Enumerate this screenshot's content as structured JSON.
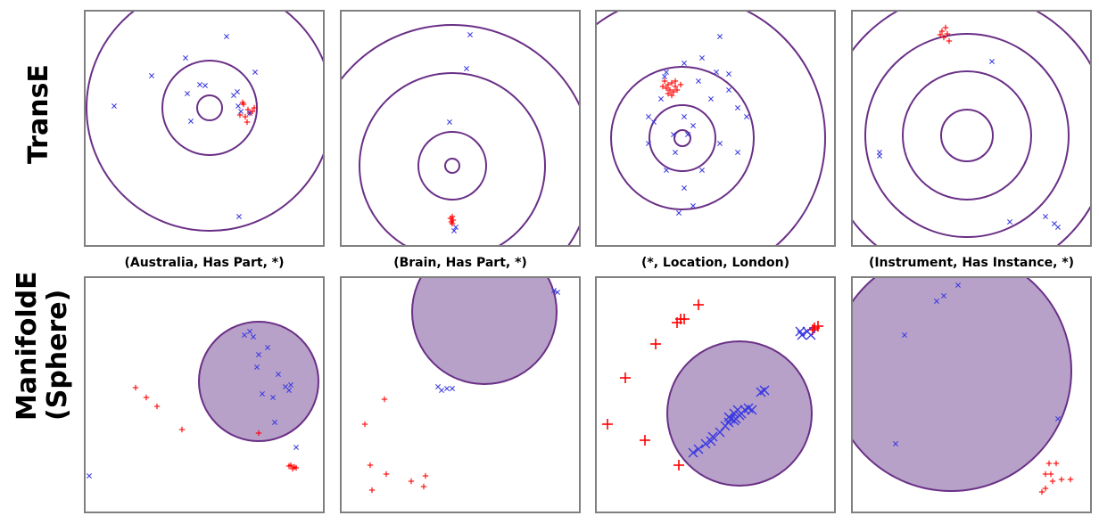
{
  "row_labels": {
    "transe": "TransE",
    "manifolde_line1": "ManifoldE",
    "manifolde_line2": "(Sphere)"
  },
  "column_labels": [
    "(Australia, Has Part, *)",
    "(Brain, Has Part, *)",
    "(*, Location, London)",
    "(Instrument, Has Instance, *)"
  ],
  "colors": {
    "circle": "#6a2f86",
    "sphere_fill": "#b7a1c9",
    "positive": "#ff0000",
    "negative": "#3a3ae0",
    "frame": "#808080"
  },
  "chart_data": [
    {
      "type": "scatter",
      "panel": "transe-australia",
      "xlim": [
        0,
        270
      ],
      "ylim": [
        0,
        266
      ],
      "rings": {
        "center": [
          141,
          110
        ],
        "radii": [
          14,
          53,
          138
        ]
      },
      "positives": [
        [
          178,
          104
        ],
        [
          184,
          112
        ],
        [
          186,
          116
        ],
        [
          181,
          120
        ],
        [
          189,
          114
        ],
        [
          175,
          118
        ],
        [
          191,
          110
        ],
        [
          183,
          126
        ],
        [
          179,
          106
        ]
      ],
      "negatives": [
        [
          160,
          30
        ],
        [
          34,
          108
        ],
        [
          76,
          74
        ],
        [
          114,
          54
        ],
        [
          130,
          84
        ],
        [
          116,
          94
        ],
        [
          136,
          85
        ],
        [
          168,
          96
        ],
        [
          172,
          92
        ],
        [
          192,
          70
        ],
        [
          173,
          108
        ],
        [
          176,
          114
        ],
        [
          120,
          125
        ],
        [
          174,
          232
        ],
        [
          186,
          116
        ]
      ]
    },
    {
      "type": "scatter",
      "panel": "transe-brain",
      "xlim": [
        0,
        270
      ],
      "ylim": [
        0,
        266
      ],
      "rings": {
        "center": [
          126,
          175
        ],
        "radii": [
          8,
          38,
          104,
          158
        ]
      },
      "positives": [
        [
          126,
          232
        ],
        [
          124,
          234
        ],
        [
          127,
          236
        ],
        [
          125,
          238
        ],
        [
          126,
          240
        ]
      ],
      "negatives": [
        [
          146,
          28
        ],
        [
          142,
          66
        ],
        [
          123,
          126
        ],
        [
          130,
          244
        ],
        [
          128,
          248
        ]
      ]
    },
    {
      "type": "scatter",
      "panel": "transe-london",
      "xlim": [
        0,
        270
      ],
      "ylim": [
        0,
        266
      ],
      "rings": {
        "center": [
          98,
          144
        ],
        "radii": [
          9,
          37,
          80,
          160
        ]
      },
      "positives": [
        [
          78,
          80
        ],
        [
          82,
          84
        ],
        [
          86,
          82
        ],
        [
          90,
          86
        ],
        [
          80,
          88
        ],
        [
          84,
          90
        ],
        [
          88,
          92
        ],
        [
          92,
          90
        ],
        [
          96,
          84
        ],
        [
          76,
          86
        ],
        [
          82,
          94
        ],
        [
          86,
          96
        ],
        [
          90,
          80
        ]
      ],
      "negatives": [
        [
          80,
          70
        ],
        [
          78,
          75
        ],
        [
          100,
          60
        ],
        [
          120,
          54
        ],
        [
          140,
          30
        ],
        [
          150,
          72
        ],
        [
          160,
          110
        ],
        [
          170,
          120
        ],
        [
          60,
          120
        ],
        [
          66,
          126
        ],
        [
          100,
          120
        ],
        [
          110,
          130
        ],
        [
          90,
          160
        ],
        [
          80,
          180
        ],
        [
          100,
          200
        ],
        [
          110,
          220
        ],
        [
          94,
          228
        ],
        [
          60,
          150
        ],
        [
          140,
          150
        ],
        [
          130,
          100
        ],
        [
          116,
          80
        ],
        [
          136,
          70
        ],
        [
          74,
          100
        ],
        [
          150,
          90
        ],
        [
          88,
          140
        ],
        [
          104,
          140
        ],
        [
          160,
          160
        ],
        [
          120,
          180
        ]
      ]
    },
    {
      "type": "scatter",
      "panel": "transe-instrument",
      "xlim": [
        0,
        270
      ],
      "ylim": [
        0,
        266
      ],
      "rings": {
        "center": [
          130,
          141
        ],
        "radii": [
          29,
          72,
          114,
          160
        ]
      },
      "positives": [
        [
          106,
          20
        ],
        [
          102,
          24
        ],
        [
          108,
          27
        ],
        [
          104,
          31
        ],
        [
          110,
          35
        ],
        [
          100,
          28
        ]
      ],
      "negatives": [
        [
          32,
          160
        ],
        [
          32,
          164
        ],
        [
          158,
          58
        ],
        [
          178,
          238
        ],
        [
          218,
          232
        ],
        [
          228,
          240
        ],
        [
          232,
          244
        ]
      ]
    },
    {
      "type": "scatter",
      "panel": "manifolde-australia",
      "xlim": [
        0,
        270
      ],
      "ylim": [
        0,
        266
      ],
      "sphere": {
        "center": [
          196,
          118
        ],
        "radius": 67
      },
      "positives": [
        [
          58,
          125
        ],
        [
          70,
          136
        ],
        [
          82,
          146
        ],
        [
          110,
          172
        ],
        [
          196,
          176
        ],
        [
          232,
          212
        ],
        [
          236,
          214
        ],
        [
          234,
          216
        ],
        [
          238,
          215
        ],
        [
          230,
          213
        ]
      ],
      "negatives": [
        [
          180,
          66
        ],
        [
          186,
          62
        ],
        [
          190,
          68
        ],
        [
          196,
          88
        ],
        [
          206,
          80
        ],
        [
          194,
          102
        ],
        [
          218,
          110
        ],
        [
          226,
          124
        ],
        [
          232,
          122
        ],
        [
          230,
          128
        ],
        [
          200,
          132
        ],
        [
          212,
          136
        ],
        [
          214,
          164
        ],
        [
          238,
          192
        ],
        [
          6,
          224
        ]
      ]
    },
    {
      "type": "scatter",
      "panel": "manifolde-brain",
      "xlim": [
        0,
        270
      ],
      "ylim": [
        0,
        266
      ],
      "sphere": {
        "center": [
          162,
          40
        ],
        "radius": 81
      },
      "positives": [
        [
          50,
          138
        ],
        [
          28,
          166
        ],
        [
          34,
          212
        ],
        [
          52,
          222
        ],
        [
          36,
          240
        ],
        [
          80,
          230
        ],
        [
          94,
          236
        ],
        [
          96,
          224
        ]
      ],
      "negatives": [
        [
          240,
          16
        ],
        [
          244,
          18
        ],
        [
          110,
          124
        ],
        [
          114,
          128
        ],
        [
          120,
          126
        ],
        [
          126,
          126
        ]
      ]
    },
    {
      "type": "scatter",
      "panel": "manifolde-london",
      "xlim": [
        0,
        270
      ],
      "ylim": [
        0,
        266
      ],
      "sphere": {
        "center": [
          162,
          154
        ],
        "radius": 81
      },
      "positives": [
        [
          92,
          52
        ],
        [
          96,
          48
        ],
        [
          100,
          48
        ],
        [
          116,
          32
        ],
        [
          68,
          76
        ],
        [
          34,
          114
        ],
        [
          14,
          166
        ],
        [
          56,
          184
        ],
        [
          94,
          212
        ],
        [
          246,
          58
        ],
        [
          250,
          56
        ],
        [
          244,
          60
        ]
      ],
      "negatives": [
        [
          232,
          66
        ],
        [
          238,
          62
        ],
        [
          242,
          66
        ],
        [
          230,
          62
        ],
        [
          186,
          130
        ],
        [
          190,
          128
        ],
        [
          160,
          150
        ],
        [
          156,
          154
        ],
        [
          152,
          160
        ],
        [
          150,
          164
        ],
        [
          156,
          162
        ],
        [
          162,
          156
        ],
        [
          164,
          154
        ],
        [
          158,
          160
        ],
        [
          140,
          175
        ],
        [
          132,
          180
        ],
        [
          124,
          188
        ],
        [
          116,
          194
        ],
        [
          110,
          198
        ],
        [
          130,
          185
        ],
        [
          146,
          168
        ],
        [
          168,
          150
        ],
        [
          172,
          148
        ],
        [
          176,
          150
        ],
        [
          150,
          158
        ]
      ]
    },
    {
      "type": "scatter",
      "panel": "manifolde-instrument",
      "xlim": [
        0,
        270
      ],
      "ylim": [
        0,
        266
      ],
      "sphere": {
        "center": [
          112,
          106
        ],
        "radius": 135
      },
      "positives": [
        [
          222,
          210
        ],
        [
          230,
          210
        ],
        [
          218,
          222
        ],
        [
          226,
          230
        ],
        [
          236,
          228
        ],
        [
          246,
          228
        ],
        [
          218,
          238
        ],
        [
          214,
          242
        ],
        [
          224,
          222
        ]
      ],
      "negatives": [
        [
          96,
          28
        ],
        [
          104,
          22
        ],
        [
          120,
          10
        ],
        [
          60,
          66
        ],
        [
          232,
          160
        ],
        [
          50,
          188
        ]
      ]
    }
  ]
}
